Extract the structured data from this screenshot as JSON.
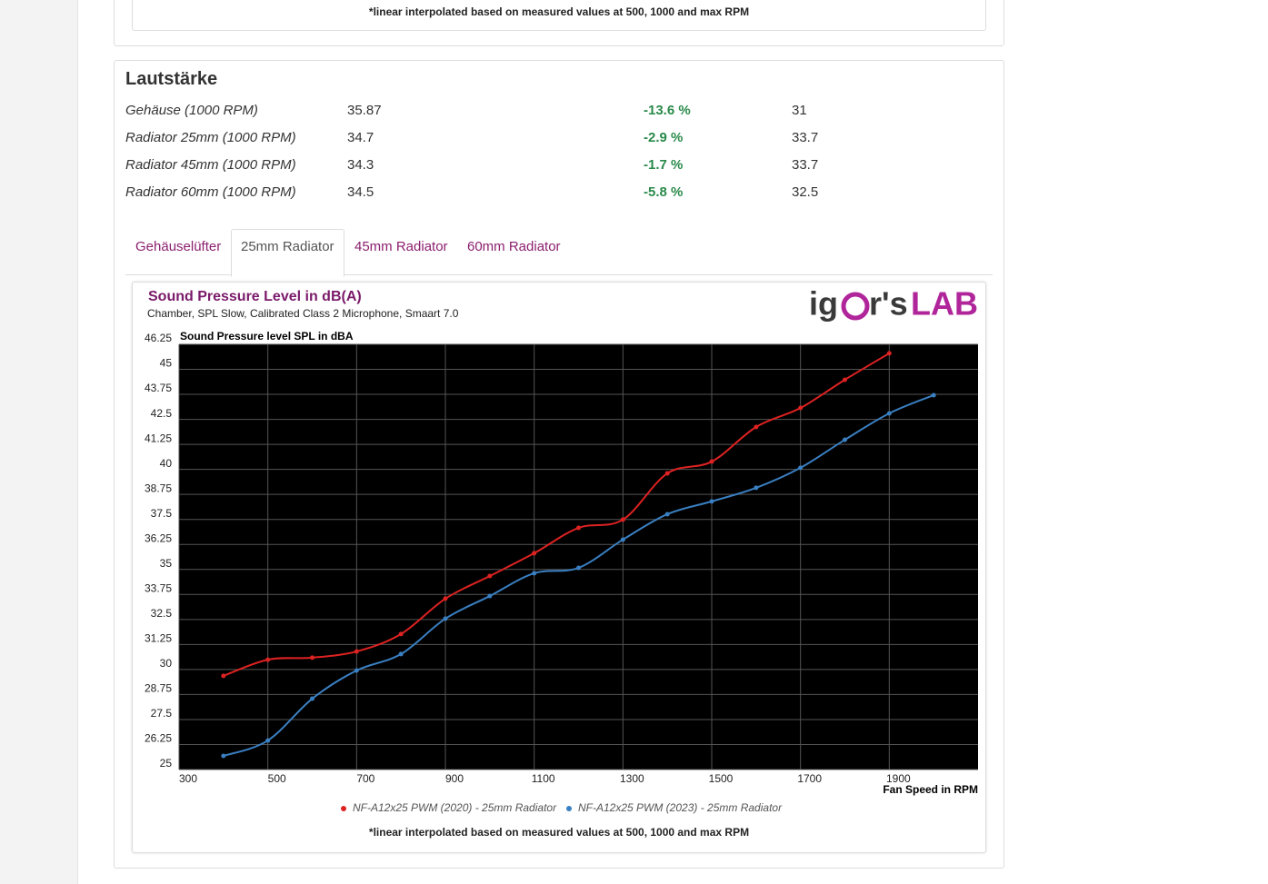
{
  "top_note": "*linear interpolated based on measured values at 500, 1000 and max RPM",
  "section": {
    "title": "Lautstärke",
    "rows": [
      [
        "Gehäuse (1000 RPM)",
        "35.87",
        "-13.6 %",
        "31"
      ],
      [
        "Radiator 25mm (1000 RPM)",
        "34.7",
        "-2.9 %",
        "33.7"
      ],
      [
        "Radiator 45mm (1000 RPM)",
        "34.3",
        "-1.7 %",
        "33.7"
      ],
      [
        "Radiator 60mm (1000 RPM)",
        "34.5",
        "-5.8 %",
        "32.5"
      ]
    ],
    "tabs": [
      "Gehäuselüfter",
      "25mm Radiator",
      "45mm Radiator",
      "60mm Radiator"
    ],
    "active_tab": 1
  },
  "logo": {
    "left": "ig",
    "mid": "r's",
    "right": "LAB"
  },
  "chart_data": {
    "type": "line",
    "title": "Sound Pressure Level in dB(A)",
    "subtitle": "Chamber, SPL Slow, Calibrated Class 2 Microphone, Smaart 7.0",
    "y_label": "Sound Pressure level SPL in dBA",
    "x_label": "Fan Speed in RPM",
    "note": "*linear interpolated based on measured values at 500, 1000 and max RPM",
    "xlim": [
      300,
      2100
    ],
    "xticks": [
      300,
      500,
      700,
      900,
      1100,
      1300,
      1500,
      1700,
      1900
    ],
    "ylim": [
      25,
      46.25
    ],
    "yticks": [
      25,
      26.25,
      27.5,
      28.75,
      30,
      31.25,
      32.5,
      33.75,
      35,
      36.25,
      37.5,
      38.75,
      40,
      41.25,
      42.5,
      43.75,
      45,
      46.25
    ],
    "grid": true,
    "background": "#000000",
    "series": [
      {
        "name": "NF-A12x25 PWM (2020) - 25mm Radiator",
        "color": "#dd2222",
        "x": [
          400,
          500,
          600,
          700,
          800,
          900,
          1000,
          1100,
          1200,
          1300,
          1400,
          1500,
          1600,
          1700,
          1800,
          1900
        ],
        "values": [
          29.68,
          30.49,
          30.59,
          30.9,
          31.77,
          33.54,
          34.67,
          35.81,
          37.08,
          37.49,
          39.8,
          40.39,
          42.12,
          43.07,
          44.48,
          45.8
        ]
      },
      {
        "name": "NF-A12x25 PWM (2023) - 25mm Radiator",
        "color": "#3a7fc1",
        "x": [
          400,
          500,
          600,
          700,
          800,
          900,
          1000,
          1100,
          1200,
          1300,
          1400,
          1500,
          1600,
          1700,
          1800,
          1900,
          2000
        ],
        "values": [
          25.68,
          26.45,
          28.54,
          29.95,
          30.77,
          32.54,
          33.67,
          34.81,
          35.08,
          36.49,
          37.76,
          38.4,
          39.08,
          40.08,
          41.48,
          42.8,
          43.71
        ]
      }
    ]
  }
}
